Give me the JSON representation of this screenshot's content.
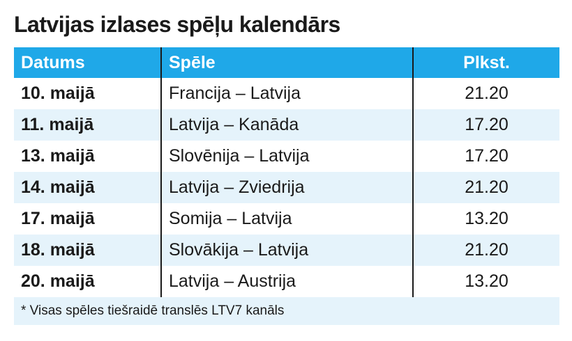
{
  "title": "Latvijas izlases spēļu kalendārs",
  "header": {
    "date": "Datums",
    "game": "Spēle",
    "time": "Plkst."
  },
  "rows": [
    {
      "date": "10. maijā",
      "game": "Francija – Latvija",
      "time": "21.20"
    },
    {
      "date": "11. maijā",
      "game": "Latvija – Kanāda",
      "time": "17.20"
    },
    {
      "date": "13. maijā",
      "game": "Slovēnija – Latvija",
      "time": "17.20"
    },
    {
      "date": "14. maijā",
      "game": "Latvija – Zviedrija",
      "time": "21.20"
    },
    {
      "date": "17. maijā",
      "game": "Somija – Latvija",
      "time": "13.20"
    },
    {
      "date": "18. maijā",
      "game": "Slovākija – Latvija",
      "time": "21.20"
    },
    {
      "date": "20. maijā",
      "game": "Latvija – Austrija",
      "time": "13.20"
    }
  ],
  "footnote": "* Visas spēles tiešraidē translēs LTV7 kanāls",
  "colors": {
    "header_bg": "#1fa8e8",
    "alt_row_bg": "#e5f3fb",
    "text": "#1a1a1a"
  }
}
